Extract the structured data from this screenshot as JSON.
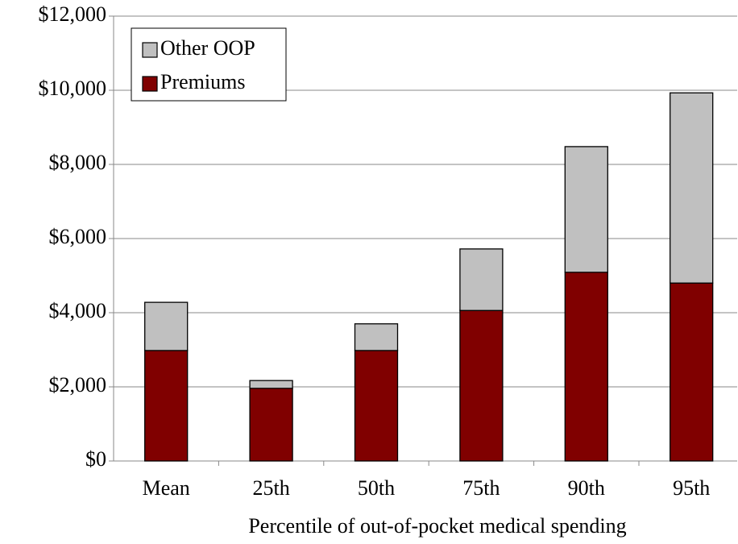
{
  "chart_data": {
    "type": "stacked_bar",
    "x_label": "Percentile of out-of-pocket medical spending",
    "categories": [
      "Mean",
      "25th",
      "50th",
      "75th",
      "90th",
      "95th"
    ],
    "series": [
      {
        "name": "Premiums",
        "color": "#800000",
        "values": [
          2980,
          1960,
          2980,
          4060,
          5090,
          4800
        ]
      },
      {
        "name": "Other OOP",
        "color": "#c0c0c0",
        "values": [
          1300,
          210,
          720,
          1660,
          3390,
          5130
        ]
      }
    ],
    "ylim": [
      0,
      12000
    ],
    "yticks": [
      {
        "value": 0,
        "label": "$0"
      },
      {
        "value": 2000,
        "label": "$2,000"
      },
      {
        "value": 4000,
        "label": "$4,000"
      },
      {
        "value": 6000,
        "label": "$6,000"
      },
      {
        "value": 8000,
        "label": "$8,000"
      },
      {
        "value": 10000,
        "label": "$10,000"
      },
      {
        "value": 12000,
        "label": "$12,000"
      }
    ],
    "grid": true,
    "legend": "top-left"
  }
}
